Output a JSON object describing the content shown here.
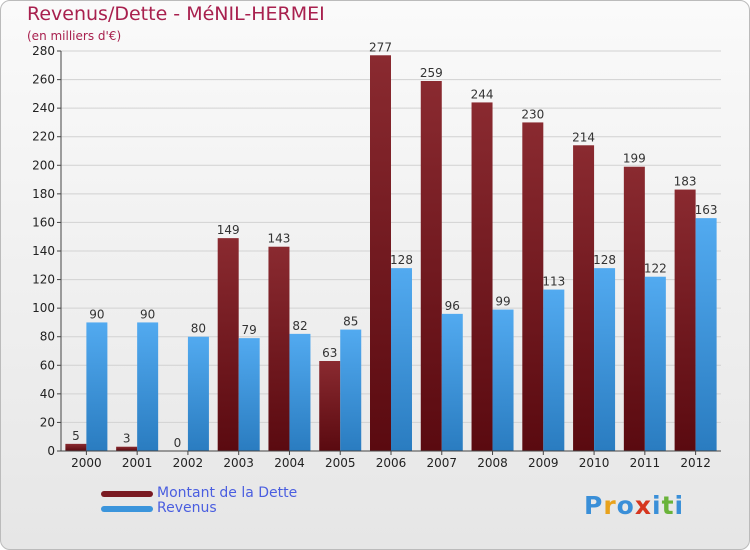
{
  "chart_data": {
    "type": "bar",
    "title": "Revenus/Dette - MéNIL-HERMEI",
    "subtitle": "(en milliers d'€)",
    "categories": [
      "2000",
      "2001",
      "2002",
      "2003",
      "2004",
      "2005",
      "2006",
      "2007",
      "2008",
      "2009",
      "2010",
      "2011",
      "2012"
    ],
    "series": [
      {
        "name": "Montant de la Dette",
        "color": "#7a1a22",
        "values": [
          5,
          3,
          0,
          149,
          143,
          63,
          277,
          259,
          244,
          230,
          214,
          199,
          183
        ]
      },
      {
        "name": "Revenus",
        "color": "#3b95dc",
        "values": [
          90,
          90,
          80,
          79,
          82,
          85,
          128,
          96,
          99,
          113,
          128,
          122,
          163
        ]
      }
    ],
    "ylim": [
      0,
      280
    ],
    "yticks": [
      0,
      20,
      40,
      60,
      80,
      100,
      120,
      140,
      160,
      180,
      200,
      220,
      240,
      260,
      280
    ],
    "grid": true,
    "legend_position": "bottom-left"
  },
  "logo": {
    "letters": [
      "P",
      "r",
      "o",
      "x",
      "i",
      "t",
      "i"
    ],
    "colors": [
      "#3a8fd8",
      "#e8a21c",
      "#3a8fd8",
      "#d6361f",
      "#3a8fd8",
      "#6ab33a",
      "#3a8fd8"
    ]
  }
}
